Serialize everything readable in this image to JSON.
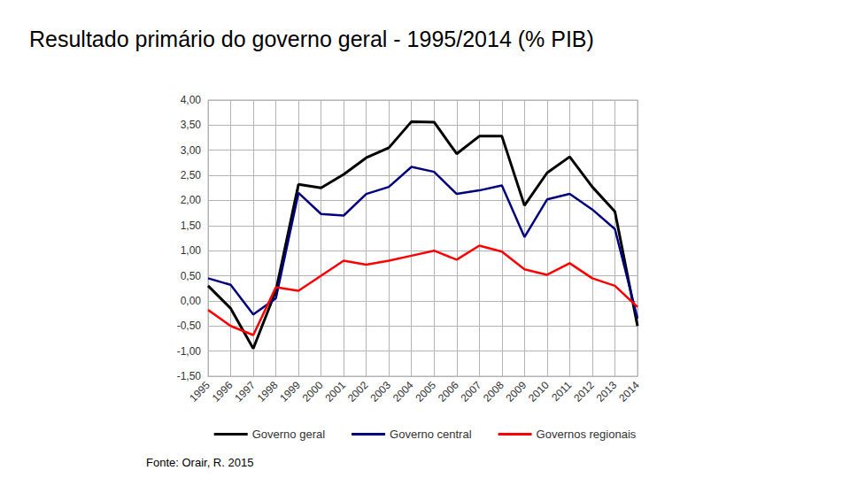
{
  "chart_data": {
    "type": "line",
    "title": "Resultado primário do governo geral - 1995/2014 (% PIB)",
    "source": "Fonte: Orair, R. 2015",
    "categories": [
      "1995",
      "1996",
      "1997",
      "1998",
      "1999",
      "2000",
      "2001",
      "2002",
      "2003",
      "2004",
      "2005",
      "2006",
      "2007",
      "2008",
      "2009",
      "2010",
      "2011",
      "2012",
      "2013",
      "2014"
    ],
    "series": [
      {
        "name": "Governo geral",
        "color": "#000000",
        "values": [
          0.3,
          -0.15,
          -0.95,
          0.2,
          2.32,
          2.25,
          2.52,
          2.85,
          3.05,
          3.57,
          3.56,
          2.93,
          3.28,
          3.28,
          1.9,
          2.55,
          2.87,
          2.27,
          1.78,
          -0.5
        ]
      },
      {
        "name": "Governo central",
        "color": "#000080",
        "values": [
          0.45,
          0.32,
          -0.27,
          0.05,
          2.15,
          1.73,
          1.7,
          2.13,
          2.27,
          2.67,
          2.57,
          2.13,
          2.2,
          2.3,
          1.27,
          2.02,
          2.13,
          1.82,
          1.43,
          -0.35
        ]
      },
      {
        "name": "Governos regionais",
        "color": "#ff0000",
        "values": [
          -0.18,
          -0.5,
          -0.68,
          0.27,
          0.2,
          0.5,
          0.8,
          0.72,
          0.8,
          0.9,
          1.0,
          0.82,
          1.1,
          0.98,
          0.63,
          0.52,
          0.75,
          0.45,
          0.3,
          -0.12
        ]
      }
    ],
    "ylim": [
      -1.5,
      4
    ],
    "yticks": [
      {
        "value": -1.5,
        "label": "-1,50"
      },
      {
        "value": -1,
        "label": "-1,00"
      },
      {
        "value": -0.5,
        "label": "-0,50"
      },
      {
        "value": 0,
        "label": "0,00"
      },
      {
        "value": 0.5,
        "label": "0,50"
      },
      {
        "value": 1,
        "label": "1,00"
      },
      {
        "value": 1.5,
        "label": "1,50"
      },
      {
        "value": 2,
        "label": "2,00"
      },
      {
        "value": 2.5,
        "label": "2,50"
      },
      {
        "value": 3,
        "label": "3,00"
      },
      {
        "value": 3.5,
        "label": "3,50"
      },
      {
        "value": 4,
        "label": "4,00"
      }
    ],
    "grid": true,
    "legend": "bottom",
    "marker": "none",
    "line_style": "solid"
  }
}
